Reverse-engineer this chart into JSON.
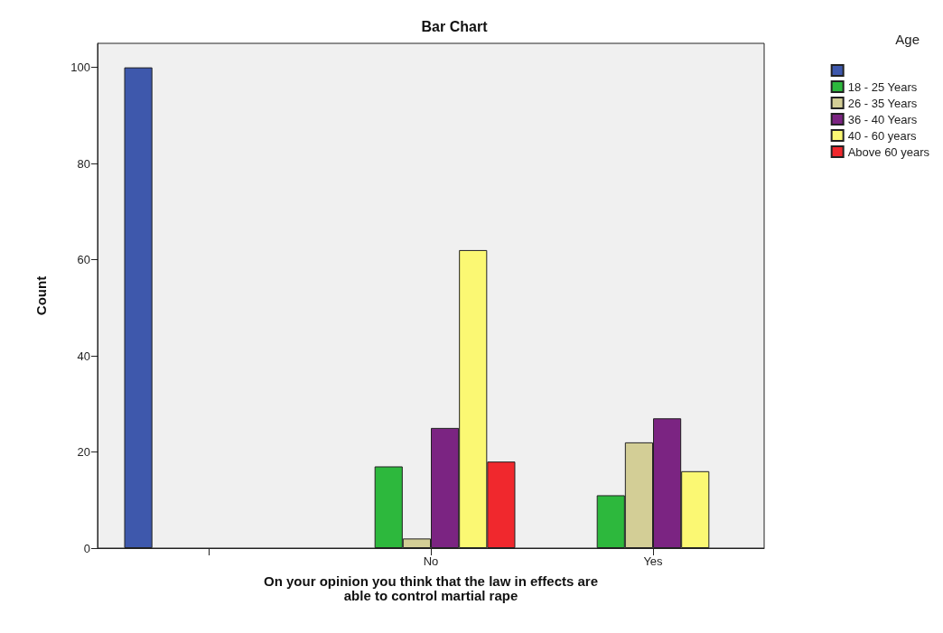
{
  "chart_data": {
    "type": "bar",
    "title": "Bar Chart",
    "xlabel": "On your opinion you think that the law in effects are\nable to control martial rape",
    "ylabel": "Count",
    "legend_title": "Age",
    "categories": [
      null,
      "No",
      "Yes"
    ],
    "series": [
      {
        "color": "#3e58ac",
        "values": [
          100,
          null,
          null
        ]
      },
      {
        "name": "18 - 25 Years",
        "color": "#2db83d",
        "values": [
          null,
          17,
          11
        ]
      },
      {
        "name": "26 - 35 Years",
        "color": "#d3ce96",
        "values": [
          null,
          2,
          22
        ]
      },
      {
        "name": "36 - 40 Years",
        "color": "#7b2482",
        "values": [
          null,
          25,
          27
        ]
      },
      {
        "name": "40 - 60 years",
        "color": "#fbf873",
        "values": [
          null,
          62,
          16
        ]
      },
      {
        "name": "Above 60 years",
        "color": "#f0282d",
        "values": [
          null,
          18,
          null
        ]
      }
    ],
    "ylim": [
      0,
      105
    ],
    "yticks": [
      0,
      20,
      40,
      60,
      80,
      100
    ],
    "grid": false,
    "legend": "top right"
  }
}
